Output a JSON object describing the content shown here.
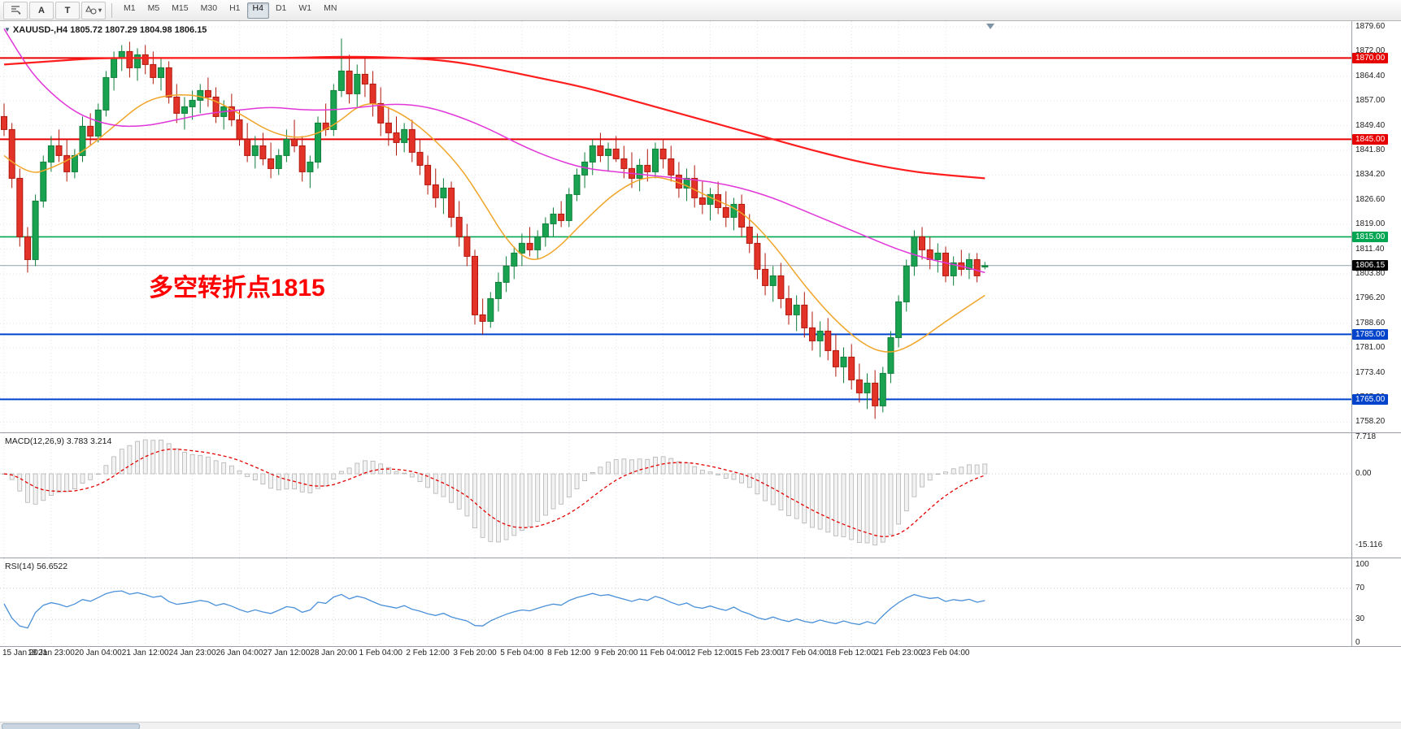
{
  "toolbar": {
    "tools": {
      "text_label": "A",
      "text_box": "T",
      "shapes_caret": "▾"
    },
    "timeframes": [
      "M1",
      "M5",
      "M15",
      "M30",
      "H1",
      "H4",
      "D1",
      "W1",
      "MN"
    ],
    "active_timeframe": "H4"
  },
  "chart": {
    "collapse_marker": "▼",
    "title": "XAUUSD-,H4 1805.72 1807.29 1804.98 1806.15",
    "annotation": {
      "text": "多空转折点1815",
      "color": "#ff0000"
    },
    "current_price": "1806.15",
    "current_price_value": 1806.15,
    "price_axis": [
      "1879.60",
      "1872.00",
      "1864.40",
      "1857.00",
      "1849.40",
      "1841.80",
      "1834.20",
      "1826.60",
      "1819.00",
      "1811.40",
      "1803.80",
      "1796.20",
      "1788.60",
      "1781.00",
      "1773.40",
      "1765.80",
      "1758.20"
    ],
    "levels": [
      {
        "label": "1870.00",
        "price": 1870.0,
        "color": "#e60000"
      },
      {
        "label": "1845.00",
        "price": 1845.0,
        "color": "#e60000"
      },
      {
        "label": "1815.00",
        "price": 1815.0,
        "color": "#00a651"
      },
      {
        "label": "1785.00",
        "price": 1785.0,
        "color": "#0044cc"
      },
      {
        "label": "1765.00",
        "price": 1765.0,
        "color": "#0044cc"
      }
    ],
    "time_axis": [
      "15 Jan 2021",
      "18 Jan 23:00",
      "20 Jan 04:00",
      "21 Jan 12:00",
      "24 Jan 23:00",
      "26 Jan 04:00",
      "27 Jan 12:00",
      "28 Jan 20:00",
      "1 Feb 04:00",
      "2 Feb 12:00",
      "3 Feb 20:00",
      "5 Feb 04:00",
      "8 Feb 12:00",
      "9 Feb 20:00",
      "11 Feb 04:00",
      "12 Feb 12:00",
      "15 Feb 23:00",
      "17 Feb 04:00",
      "18 Feb 12:00",
      "21 Feb 23:00",
      "23 Feb 04:00"
    ]
  },
  "macd": {
    "label": "MACD(12,26,9) 3.783 3.214",
    "axis": [
      "7.718",
      "0.00",
      "-15.116"
    ],
    "max": 7.718,
    "min": -15.116
  },
  "rsi": {
    "label": "RSI(14) 56.6522",
    "axis": [
      "100",
      "70",
      "30",
      "0"
    ],
    "levels": [
      70,
      30
    ]
  },
  "chart_data": {
    "type": "candlestick",
    "symbol": "XAUUSD-",
    "timeframe": "H4",
    "price_range": [
      1758.2,
      1879.6
    ],
    "up_color": "#19a351",
    "down_color": "#e33227",
    "up_border": "#0e7e3a",
    "down_border": "#b1170c",
    "ohlc": [
      [
        1852,
        1856,
        1846,
        1848
      ],
      [
        1848,
        1850,
        1830,
        1833
      ],
      [
        1833,
        1836,
        1812,
        1815
      ],
      [
        1815,
        1818,
        1804,
        1808
      ],
      [
        1808,
        1828,
        1806,
        1826
      ],
      [
        1826,
        1840,
        1824,
        1838
      ],
      [
        1838,
        1846,
        1835,
        1843
      ],
      [
        1843,
        1848,
        1838,
        1840
      ],
      [
        1840,
        1845,
        1832,
        1835
      ],
      [
        1835,
        1842,
        1833,
        1840
      ],
      [
        1840,
        1852,
        1838,
        1849
      ],
      [
        1849,
        1853,
        1843,
        1846
      ],
      [
        1846,
        1856,
        1844,
        1854
      ],
      [
        1854,
        1866,
        1852,
        1864
      ],
      [
        1864,
        1872,
        1860,
        1870
      ],
      [
        1870,
        1874,
        1866,
        1872
      ],
      [
        1872,
        1875,
        1864,
        1867
      ],
      [
        1867,
        1873,
        1863,
        1871
      ],
      [
        1871,
        1874,
        1865,
        1868
      ],
      [
        1868,
        1872,
        1862,
        1864
      ],
      [
        1864,
        1870,
        1860,
        1867
      ],
      [
        1867,
        1869,
        1856,
        1858
      ],
      [
        1858,
        1862,
        1850,
        1853
      ],
      [
        1853,
        1858,
        1848,
        1855
      ],
      [
        1855,
        1860,
        1851,
        1857
      ],
      [
        1857,
        1862,
        1853,
        1860
      ],
      [
        1860,
        1864,
        1855,
        1858
      ],
      [
        1858,
        1861,
        1850,
        1852
      ],
      [
        1852,
        1857,
        1848,
        1855
      ],
      [
        1855,
        1859,
        1849,
        1851
      ],
      [
        1851,
        1854,
        1843,
        1845
      ],
      [
        1845,
        1850,
        1838,
        1840
      ],
      [
        1840,
        1846,
        1836,
        1843
      ],
      [
        1843,
        1847,
        1837,
        1839
      ],
      [
        1839,
        1844,
        1833,
        1836
      ],
      [
        1836,
        1842,
        1834,
        1840
      ],
      [
        1840,
        1848,
        1838,
        1845
      ],
      [
        1845,
        1851,
        1841,
        1843
      ],
      [
        1843,
        1846,
        1832,
        1835
      ],
      [
        1835,
        1840,
        1830,
        1838
      ],
      [
        1838,
        1852,
        1836,
        1850
      ],
      [
        1850,
        1856,
        1846,
        1848
      ],
      [
        1848,
        1862,
        1846,
        1860
      ],
      [
        1860,
        1876,
        1858,
        1866
      ],
      [
        1866,
        1871,
        1856,
        1859
      ],
      [
        1859,
        1868,
        1855,
        1865
      ],
      [
        1865,
        1870,
        1858,
        1862
      ],
      [
        1862,
        1866,
        1852,
        1856
      ],
      [
        1856,
        1861,
        1846,
        1850
      ],
      [
        1850,
        1855,
        1843,
        1847
      ],
      [
        1847,
        1852,
        1840,
        1844
      ],
      [
        1844,
        1850,
        1841,
        1848
      ],
      [
        1848,
        1851,
        1838,
        1841
      ],
      [
        1841,
        1845,
        1834,
        1837
      ],
      [
        1837,
        1840,
        1828,
        1831
      ],
      [
        1831,
        1836,
        1824,
        1827
      ],
      [
        1827,
        1833,
        1822,
        1830
      ],
      [
        1830,
        1832,
        1818,
        1821
      ],
      [
        1821,
        1826,
        1812,
        1815
      ],
      [
        1815,
        1819,
        1806,
        1809
      ],
      [
        1809,
        1811,
        1788,
        1791
      ],
      [
        1791,
        1796,
        1785,
        1789
      ],
      [
        1789,
        1798,
        1787,
        1796
      ],
      [
        1796,
        1804,
        1792,
        1801
      ],
      [
        1801,
        1809,
        1798,
        1806
      ],
      [
        1806,
        1812,
        1802,
        1810
      ],
      [
        1810,
        1816,
        1806,
        1813
      ],
      [
        1813,
        1818,
        1809,
        1811
      ],
      [
        1811,
        1817,
        1808,
        1815
      ],
      [
        1815,
        1821,
        1812,
        1819
      ],
      [
        1819,
        1824,
        1815,
        1822
      ],
      [
        1822,
        1826,
        1818,
        1820
      ],
      [
        1820,
        1830,
        1818,
        1828
      ],
      [
        1828,
        1836,
        1826,
        1834
      ],
      [
        1834,
        1841,
        1830,
        1838
      ],
      [
        1838,
        1845,
        1834,
        1843
      ],
      [
        1843,
        1847,
        1838,
        1840
      ],
      [
        1840,
        1844,
        1835,
        1842
      ],
      [
        1842,
        1846,
        1838,
        1839
      ],
      [
        1839,
        1843,
        1833,
        1836
      ],
      [
        1836,
        1841,
        1830,
        1833
      ],
      [
        1833,
        1839,
        1829,
        1837
      ],
      [
        1837,
        1842,
        1832,
        1835
      ],
      [
        1835,
        1844,
        1833,
        1842
      ],
      [
        1842,
        1845,
        1836,
        1839
      ],
      [
        1839,
        1843,
        1832,
        1834
      ],
      [
        1834,
        1838,
        1827,
        1830
      ],
      [
        1830,
        1836,
        1826,
        1833
      ],
      [
        1833,
        1837,
        1824,
        1827
      ],
      [
        1827,
        1832,
        1822,
        1825
      ],
      [
        1825,
        1830,
        1820,
        1828
      ],
      [
        1828,
        1832,
        1822,
        1824
      ],
      [
        1824,
        1829,
        1818,
        1821
      ],
      [
        1821,
        1827,
        1817,
        1825
      ],
      [
        1825,
        1828,
        1815,
        1818
      ],
      [
        1818,
        1822,
        1810,
        1813
      ],
      [
        1813,
        1816,
        1802,
        1805
      ],
      [
        1805,
        1810,
        1797,
        1800
      ],
      [
        1800,
        1806,
        1795,
        1803
      ],
      [
        1803,
        1807,
        1793,
        1796
      ],
      [
        1796,
        1800,
        1788,
        1791
      ],
      [
        1791,
        1797,
        1786,
        1794
      ],
      [
        1794,
        1798,
        1784,
        1787
      ],
      [
        1787,
        1792,
        1780,
        1783
      ],
      [
        1783,
        1789,
        1778,
        1786
      ],
      [
        1786,
        1790,
        1777,
        1780
      ],
      [
        1780,
        1785,
        1772,
        1775
      ],
      [
        1775,
        1781,
        1770,
        1778
      ],
      [
        1778,
        1782,
        1768,
        1771
      ],
      [
        1771,
        1776,
        1764,
        1767
      ],
      [
        1767,
        1773,
        1762,
        1770
      ],
      [
        1770,
        1774,
        1759,
        1763
      ],
      [
        1763,
        1775,
        1761,
        1773
      ],
      [
        1773,
        1786,
        1770,
        1784
      ],
      [
        1784,
        1797,
        1781,
        1795
      ],
      [
        1795,
        1808,
        1792,
        1806
      ],
      [
        1806,
        1817,
        1803,
        1815
      ],
      [
        1815,
        1818,
        1808,
        1811
      ],
      [
        1811,
        1815,
        1805,
        1808
      ],
      [
        1808,
        1813,
        1804,
        1810
      ],
      [
        1810,
        1812,
        1801,
        1803
      ],
      [
        1803,
        1809,
        1800,
        1807
      ],
      [
        1807,
        1811,
        1803,
        1805
      ],
      [
        1805,
        1810,
        1802,
        1808
      ],
      [
        1808,
        1810,
        1801,
        1803
      ],
      [
        1805.72,
        1807.29,
        1804.98,
        1806.15
      ]
    ],
    "ma_series": [
      {
        "name": "ma-fast-orange",
        "color": "#f0a528",
        "width": 1.5,
        "anchors": [
          [
            0,
            1840
          ],
          [
            3,
            1834
          ],
          [
            6,
            1836
          ],
          [
            10,
            1841
          ],
          [
            14,
            1849
          ],
          [
            18,
            1857
          ],
          [
            22,
            1859
          ],
          [
            26,
            1858
          ],
          [
            30,
            1853
          ],
          [
            34,
            1847
          ],
          [
            38,
            1845
          ],
          [
            42,
            1849
          ],
          [
            46,
            1857
          ],
          [
            50,
            1854
          ],
          [
            54,
            1847
          ],
          [
            58,
            1837
          ],
          [
            61,
            1826
          ],
          [
            64,
            1814
          ],
          [
            67,
            1807
          ],
          [
            70,
            1810
          ],
          [
            74,
            1820
          ],
          [
            78,
            1829
          ],
          [
            82,
            1834
          ],
          [
            86,
            1832
          ],
          [
            90,
            1827
          ],
          [
            94,
            1823
          ],
          [
            98,
            1813
          ],
          [
            102,
            1800
          ],
          [
            106,
            1789
          ],
          [
            110,
            1781
          ],
          [
            113,
            1779
          ],
          [
            116,
            1782
          ],
          [
            120,
            1789
          ],
          [
            125,
            1797
          ]
        ]
      },
      {
        "name": "ma-mid-magenta",
        "color": "#e136d9",
        "width": 1.5,
        "anchors": [
          [
            0,
            1879
          ],
          [
            2,
            1871
          ],
          [
            4,
            1864
          ],
          [
            7,
            1857
          ],
          [
            10,
            1852
          ],
          [
            14,
            1849
          ],
          [
            18,
            1849
          ],
          [
            22,
            1851
          ],
          [
            26,
            1853
          ],
          [
            30,
            1854
          ],
          [
            34,
            1855
          ],
          [
            38,
            1854
          ],
          [
            42,
            1854
          ],
          [
            46,
            1855
          ],
          [
            50,
            1856
          ],
          [
            54,
            1855
          ],
          [
            58,
            1852
          ],
          [
            62,
            1848
          ],
          [
            66,
            1843
          ],
          [
            70,
            1839
          ],
          [
            74,
            1836
          ],
          [
            78,
            1835
          ],
          [
            82,
            1834
          ],
          [
            86,
            1833
          ],
          [
            90,
            1832
          ],
          [
            94,
            1830
          ],
          [
            98,
            1827
          ],
          [
            102,
            1823
          ],
          [
            106,
            1819
          ],
          [
            110,
            1815
          ],
          [
            114,
            1811
          ],
          [
            118,
            1808
          ],
          [
            122,
            1806
          ],
          [
            125,
            1804
          ]
        ]
      },
      {
        "name": "ma-slow-red",
        "color": "#ff1e1e",
        "width": 2.2,
        "anchors": [
          [
            0,
            1868
          ],
          [
            6,
            1869
          ],
          [
            12,
            1870
          ],
          [
            20,
            1870
          ],
          [
            28,
            1870
          ],
          [
            36,
            1870
          ],
          [
            44,
            1870.5
          ],
          [
            52,
            1870
          ],
          [
            57,
            1869
          ],
          [
            62,
            1867
          ],
          [
            68,
            1864
          ],
          [
            74,
            1861
          ],
          [
            80,
            1857
          ],
          [
            86,
            1853
          ],
          [
            92,
            1849
          ],
          [
            98,
            1845
          ],
          [
            104,
            1841
          ],
          [
            110,
            1837.5
          ],
          [
            116,
            1835
          ],
          [
            120,
            1834
          ],
          [
            125,
            1833
          ]
        ]
      }
    ]
  }
}
